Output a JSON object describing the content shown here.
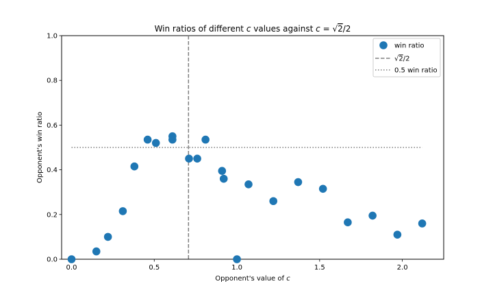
{
  "chart_data": {
    "type": "scatter",
    "title_prefix": "Win ratios of different ",
    "title_var": "c",
    "title_mid": " values against ",
    "title_var2": "c",
    "title_eq": " = ",
    "title_sqrt_arg": "2",
    "title_suffix": "/2",
    "xlabel_prefix": "Opponent's value of ",
    "xlabel_var": "c",
    "ylabel": "Opponent's win ratio",
    "xlim": [
      -0.06,
      2.25
    ],
    "ylim": [
      0.0,
      1.0
    ],
    "xticks": [
      0.0,
      0.5,
      1.0,
      1.5,
      2.0
    ],
    "xtick_labels": [
      "0.0",
      "0.5",
      "1.0",
      "1.5",
      "2.0"
    ],
    "yticks": [
      0.0,
      0.2,
      0.4,
      0.6,
      0.8,
      1.0
    ],
    "ytick_labels": [
      "0.0",
      "0.2",
      "0.4",
      "0.6",
      "0.8",
      "1.0"
    ],
    "grid": false,
    "legend_position": "top-right",
    "colors": {
      "points": "#1f77b4",
      "reference_lines": "#7f7f7f"
    },
    "series": [
      {
        "name": "win ratio",
        "kind": "scatter",
        "x": [
          0.0,
          0.15,
          0.22,
          0.31,
          0.38,
          0.46,
          0.51,
          0.61,
          0.61,
          0.71,
          0.76,
          0.81,
          0.91,
          0.92,
          1.0,
          1.07,
          1.22,
          1.37,
          1.52,
          1.67,
          1.82,
          1.97,
          2.12
        ],
        "y": [
          0.0,
          0.035,
          0.1,
          0.215,
          0.415,
          0.535,
          0.52,
          0.55,
          0.535,
          0.45,
          0.45,
          0.535,
          0.395,
          0.36,
          0.0,
          0.335,
          0.26,
          0.345,
          0.315,
          0.165,
          0.195,
          0.11,
          0.16
        ]
      },
      {
        "name_sqrt_arg": "2",
        "name_suffix": "/2",
        "kind": "vline",
        "x": 0.7071,
        "style": "dashed"
      },
      {
        "name": "0.5 win ratio",
        "kind": "hline",
        "y": 0.5,
        "x_range": [
          0.0,
          2.12
        ],
        "style": "dotted"
      }
    ]
  }
}
